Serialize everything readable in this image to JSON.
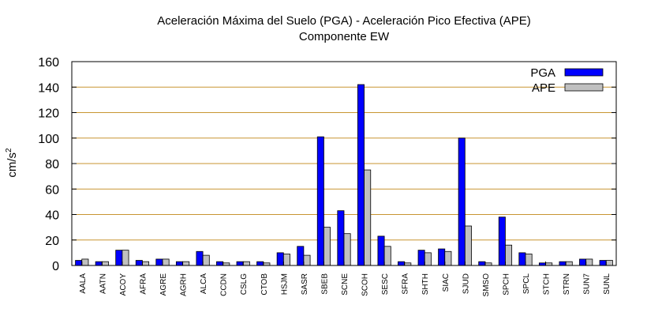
{
  "chart_data": {
    "type": "bar",
    "title_line1": "Aceleración Máxima del Suelo (PGA) -  Aceleración Pico Efectiva (APE)",
    "title_line2": "Componente EW",
    "xlabel": "",
    "ylabel_base": "cm/s",
    "ylabel_sup": "2",
    "ylim": [
      0,
      160
    ],
    "yticks": [
      "0",
      "20",
      "40",
      "60",
      "80",
      "100",
      "120",
      "140",
      "160"
    ],
    "grid": true,
    "legend_position": "top-right",
    "categories": [
      "AALA",
      "AATN",
      "ACOY",
      "AFRA",
      "AGRE",
      "AGRH",
      "ALCA",
      "CCDN",
      "CSLG",
      "CTOB",
      "HSJM",
      "SASR",
      "SBEB",
      "SCNE",
      "SCOH",
      "SESC",
      "SFRA",
      "SHTH",
      "SIAC",
      "SJUD",
      "SMSO",
      "SPCH",
      "SPCL",
      "STCH",
      "STRN",
      "SUN7",
      "SUNL"
    ],
    "series": [
      {
        "name": "PGA",
        "color": "#0000ff",
        "values": [
          4,
          3,
          12,
          4,
          5,
          3,
          11,
          3,
          3,
          3,
          10,
          15,
          101,
          43,
          142,
          23,
          3,
          12,
          13,
          100,
          3,
          38,
          10,
          2,
          3,
          5,
          4
        ]
      },
      {
        "name": "APE",
        "color": "#c0c0c0",
        "values": [
          5,
          3,
          12,
          3,
          5,
          3,
          8,
          2,
          3,
          2,
          9,
          8,
          30,
          25,
          75,
          15,
          2,
          10,
          11,
          31,
          2,
          16,
          9,
          2,
          3,
          5,
          4
        ]
      }
    ]
  }
}
